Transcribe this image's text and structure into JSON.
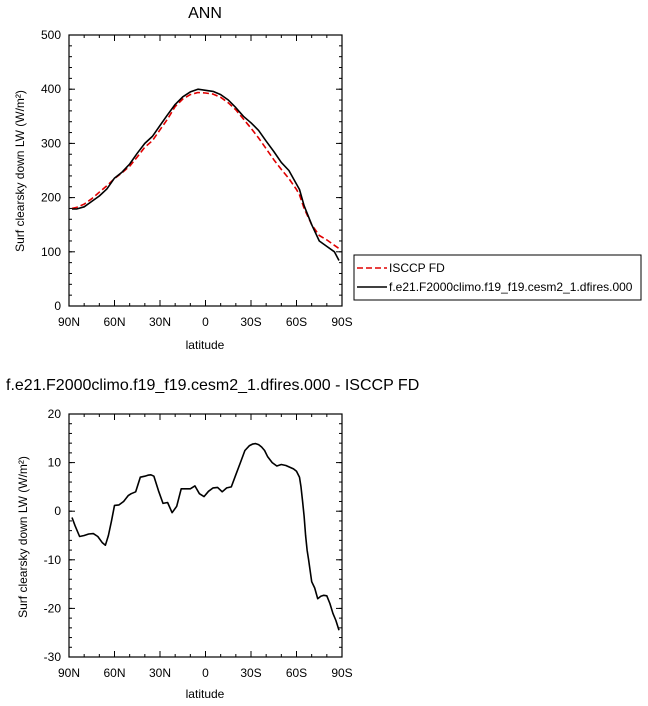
{
  "chart_data": [
    {
      "type": "line",
      "title": "ANN",
      "xlabel": "latitude",
      "ylabel": "Surf clearsky down LW (W/m²)",
      "xlim": [
        90,
        -90
      ],
      "ylim": [
        0,
        500
      ],
      "x_ticks": [
        {
          "value": 90,
          "label": "90N"
        },
        {
          "value": 60,
          "label": "60N"
        },
        {
          "value": 30,
          "label": "30N"
        },
        {
          "value": 0,
          "label": "0"
        },
        {
          "value": -30,
          "label": "30S"
        },
        {
          "value": -60,
          "label": "60S"
        },
        {
          "value": -90,
          "label": "90S"
        }
      ],
      "y_ticks": [
        0,
        100,
        200,
        300,
        400,
        500
      ],
      "legend_position": "right",
      "series": [
        {
          "name": "ISCCP FD",
          "color": "#e00000",
          "dash": true,
          "x": [
            88,
            85,
            80,
            75,
            70,
            65,
            60,
            55,
            50,
            45,
            40,
            35,
            30,
            25,
            20,
            15,
            10,
            5,
            0,
            -5,
            -10,
            -15,
            -20,
            -25,
            -30,
            -35,
            -40,
            -45,
            -50,
            -55,
            -60,
            -62,
            -65,
            -70,
            -75,
            -80,
            -85,
            -88
          ],
          "y": [
            180,
            182,
            188,
            198,
            210,
            222,
            235,
            246,
            258,
            275,
            293,
            305,
            325,
            345,
            368,
            382,
            390,
            394,
            393,
            391,
            385,
            375,
            362,
            345,
            328,
            310,
            290,
            270,
            252,
            235,
            215,
            205,
            180,
            150,
            130,
            122,
            112,
            106
          ]
        },
        {
          "name": "f.e21.F2000climo.f19_f19.cesm2_1.dfires.000",
          "color": "#000000",
          "dash": false,
          "x": [
            88,
            85,
            80,
            75,
            70,
            65,
            60,
            55,
            50,
            45,
            40,
            35,
            30,
            25,
            20,
            15,
            10,
            5,
            0,
            -5,
            -10,
            -15,
            -20,
            -25,
            -30,
            -35,
            -40,
            -45,
            -50,
            -55,
            -60,
            -62,
            -65,
            -70,
            -75,
            -80,
            -85,
            -88
          ],
          "y": [
            179,
            179,
            183,
            193,
            203,
            216,
            236,
            247,
            262,
            282,
            300,
            313,
            333,
            353,
            372,
            386,
            395,
            400,
            398,
            396,
            390,
            380,
            366,
            350,
            338,
            324,
            304,
            285,
            265,
            250,
            225,
            215,
            185,
            150,
            120,
            110,
            100,
            84
          ]
        }
      ]
    },
    {
      "type": "line",
      "title": "f.e21.F2000climo.f19_f19.cesm2_1.dfires.000 - ISCCP FD",
      "xlabel": "latitude",
      "ylabel": "Surf clearsky down LW (W/m²)",
      "xlim": [
        90,
        -90
      ],
      "ylim": [
        -30,
        20
      ],
      "x_ticks": [
        {
          "value": 90,
          "label": "90N"
        },
        {
          "value": 60,
          "label": "60N"
        },
        {
          "value": 30,
          "label": "30N"
        },
        {
          "value": 0,
          "label": "0"
        },
        {
          "value": -30,
          "label": "30S"
        },
        {
          "value": -60,
          "label": "60S"
        },
        {
          "value": -90,
          "label": "90S"
        }
      ],
      "y_ticks": [
        -30,
        -20,
        -10,
        0,
        10,
        20
      ],
      "series": [
        {
          "color": "#000000",
          "x": [
            88,
            86,
            83,
            80,
            77,
            74,
            71,
            68,
            66,
            64,
            62,
            60,
            57,
            54,
            51,
            49,
            46,
            43,
            40,
            38,
            36,
            34,
            31,
            28,
            25,
            22,
            19,
            16,
            13,
            10,
            7,
            4,
            1,
            -2,
            -5,
            -8,
            -11,
            -14,
            -17,
            -20,
            -23,
            -26,
            -29,
            -31,
            -33,
            -35,
            -37,
            -39,
            -41,
            -44,
            -47,
            -50,
            -53,
            -56,
            -58,
            -60,
            -62,
            -63,
            -64,
            -65,
            -66,
            -67,
            -68,
            -70,
            -72,
            -74,
            -76,
            -78,
            -80,
            -82,
            -84,
            -86,
            -88
          ],
          "y": [
            -1.3,
            -3,
            -5.2,
            -5,
            -4.7,
            -4.6,
            -5.2,
            -6.5,
            -7,
            -5,
            -2,
            1.2,
            1.3,
            2,
            3.2,
            3.6,
            4,
            7,
            7.2,
            7.4,
            7.5,
            7.2,
            4.2,
            1.6,
            1.8,
            -0.3,
            1,
            4.6,
            4.6,
            4.6,
            5.2,
            3.6,
            3,
            4.1,
            4.8,
            4.9,
            4,
            4.8,
            5,
            7.5,
            10,
            12.5,
            13.5,
            13.8,
            13.9,
            13.7,
            13.2,
            12.5,
            11.2,
            10,
            9.3,
            9.6,
            9.4,
            9,
            8.7,
            8.2,
            7,
            5,
            2,
            -1,
            -5,
            -8,
            -10,
            -14.5,
            -15.8,
            -18,
            -17.5,
            -17.3,
            -17.4,
            -19,
            -21,
            -22.5,
            -24.5
          ]
        }
      ]
    }
  ]
}
